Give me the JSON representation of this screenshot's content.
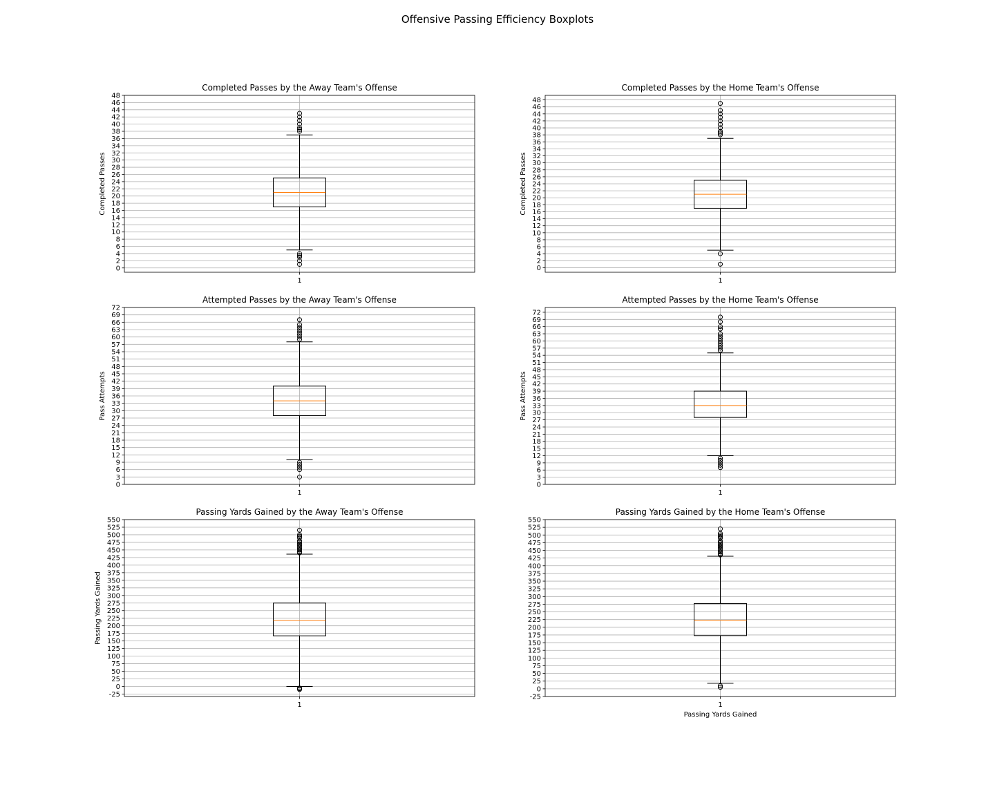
{
  "figure": {
    "title": "Offensive Passing Efficiency Boxplots"
  },
  "chart_data": [
    {
      "type": "boxplot",
      "title": "Completed Passes by the Away Team's Offense",
      "xlabel": "",
      "ylabel": "Completed Passes",
      "categories": [
        "1"
      ],
      "ylim": [
        -1.2,
        48
      ],
      "yticks": [
        0,
        2,
        4,
        6,
        8,
        10,
        12,
        14,
        16,
        18,
        20,
        22,
        24,
        26,
        28,
        30,
        32,
        34,
        36,
        38,
        40,
        42,
        44,
        46,
        48
      ],
      "grid": "y",
      "box": {
        "whisker_low": 5,
        "q1": 17,
        "median": 21,
        "q3": 25,
        "whisker_high": 37
      },
      "outliers": [
        1,
        2,
        3,
        3.5,
        4,
        38,
        38.5,
        39,
        40,
        41,
        42,
        43
      ]
    },
    {
      "type": "boxplot",
      "title": "Completed Passes by the Home Team's Offense",
      "xlabel": "",
      "ylabel": "Completed Passes",
      "categories": [
        "1"
      ],
      "ylim": [
        -1.3,
        49.3
      ],
      "yticks": [
        0,
        2,
        4,
        6,
        8,
        10,
        12,
        14,
        16,
        18,
        20,
        22,
        24,
        26,
        28,
        30,
        32,
        34,
        36,
        38,
        40,
        42,
        44,
        46,
        48
      ],
      "grid": "y",
      "box": {
        "whisker_low": 5,
        "q1": 17,
        "median": 21,
        "q3": 25,
        "whisker_high": 37
      },
      "outliers": [
        1,
        4,
        38,
        38.5,
        39,
        40,
        41,
        42,
        43,
        44,
        45,
        47
      ]
    },
    {
      "type": "boxplot",
      "title": "Attempted Passes by the Away Team's Offense",
      "xlabel": "",
      "ylabel": "Pass Attempts",
      "categories": [
        "1"
      ],
      "ylim": [
        0,
        72
      ],
      "yticks": [
        0,
        3,
        6,
        9,
        12,
        15,
        18,
        21,
        24,
        27,
        30,
        33,
        36,
        39,
        42,
        45,
        48,
        51,
        54,
        57,
        60,
        63,
        66,
        69,
        72
      ],
      "grid": "y",
      "box": {
        "whisker_low": 10,
        "q1": 28,
        "median": 34,
        "q3": 40,
        "whisker_high": 58
      },
      "outliers": [
        3,
        6,
        7,
        8,
        9,
        59,
        60,
        61,
        62,
        63,
        64,
        65,
        67
      ]
    },
    {
      "type": "boxplot",
      "title": "Attempted Passes by the Home Team's Offense",
      "xlabel": "",
      "ylabel": "Pass Attempts",
      "categories": [
        "1"
      ],
      "ylim": [
        0,
        74
      ],
      "yticks": [
        0,
        3,
        6,
        9,
        12,
        15,
        18,
        21,
        24,
        27,
        30,
        33,
        36,
        39,
        42,
        45,
        48,
        51,
        54,
        57,
        60,
        63,
        66,
        69,
        72
      ],
      "grid": "y",
      "box": {
        "whisker_low": 12,
        "q1": 28,
        "median": 33,
        "q3": 39,
        "whisker_high": 55
      },
      "outliers": [
        7,
        8,
        9,
        10,
        11,
        56,
        57,
        58,
        59,
        60,
        61,
        62,
        63,
        65,
        66,
        68,
        70
      ]
    },
    {
      "type": "boxplot",
      "title": "Passing Yards Gained by the Away Team's Offense",
      "xlabel": "",
      "ylabel": "Passing Yards Gained",
      "categories": [
        "1"
      ],
      "ylim": [
        -33,
        550
      ],
      "yticks": [
        -25,
        0,
        25,
        50,
        75,
        100,
        125,
        150,
        175,
        200,
        225,
        250,
        275,
        300,
        325,
        350,
        375,
        400,
        425,
        450,
        475,
        500,
        525,
        550
      ],
      "grid": "y",
      "box": {
        "whisker_low": 0,
        "q1": 167,
        "median": 218,
        "q3": 275,
        "whisker_high": 436
      },
      "outliers": [
        -10,
        -7,
        -5,
        440,
        445,
        450,
        455,
        460,
        465,
        470,
        475,
        480,
        490,
        495,
        500,
        515
      ]
    },
    {
      "type": "boxplot",
      "title": "Passing Yards Gained by the Home Team's Offense",
      "xlabel": "Passing Yards Gained",
      "ylabel": "",
      "categories": [
        "1"
      ],
      "ylim": [
        -25,
        550
      ],
      "yticks": [
        -25,
        0,
        25,
        50,
        75,
        100,
        125,
        150,
        175,
        200,
        225,
        250,
        275,
        300,
        325,
        350,
        375,
        400,
        425,
        450,
        475,
        500,
        525,
        550
      ],
      "grid": "y",
      "box": {
        "whisker_low": 18,
        "q1": 173,
        "median": 223,
        "q3": 277,
        "whisker_high": 431
      },
      "outliers": [
        5,
        10,
        435,
        440,
        445,
        450,
        455,
        460,
        465,
        470,
        475,
        480,
        490,
        495,
        500,
        505,
        520
      ]
    }
  ]
}
